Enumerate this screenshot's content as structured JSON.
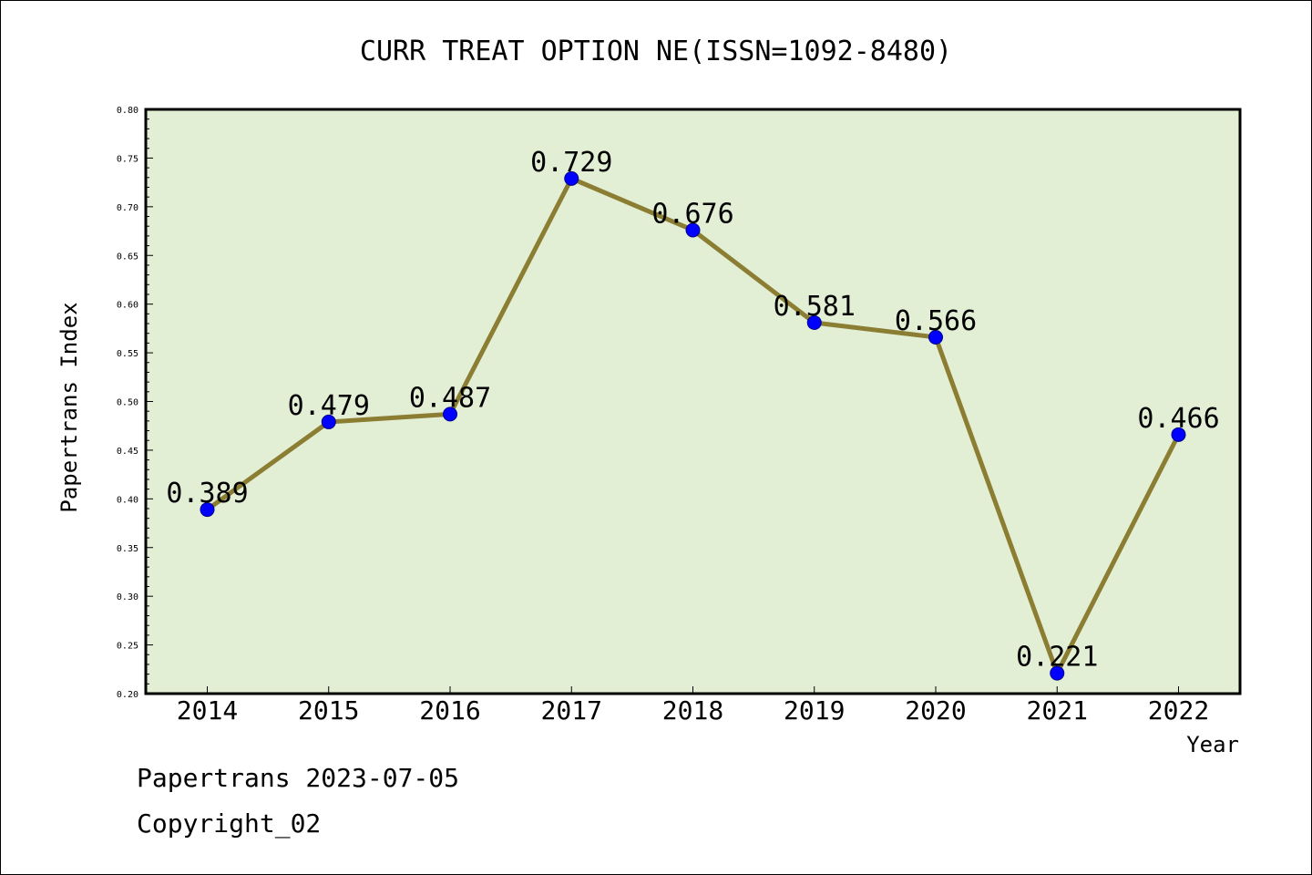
{
  "chart_data": {
    "type": "line",
    "title": "CURR TREAT OPTION NE(ISSN=1092-8480)",
    "xlabel": "Year",
    "ylabel": "Papertrans Index",
    "categories": [
      "2014",
      "2015",
      "2016",
      "2017",
      "2018",
      "2019",
      "2020",
      "2021",
      "2022"
    ],
    "values": [
      0.389,
      0.479,
      0.487,
      0.729,
      0.676,
      0.581,
      0.566,
      0.221,
      0.466
    ],
    "data_labels": [
      "0.389",
      "0.479",
      "0.487",
      "0.729",
      "0.676",
      "0.581",
      "0.566",
      "0.221",
      "0.466"
    ],
    "ylim": [
      0.2,
      0.8
    ],
    "yticks": [
      "0.20",
      "0.25",
      "0.30",
      "0.35",
      "0.40",
      "0.45",
      "0.50",
      "0.55",
      "0.60",
      "0.65",
      "0.70",
      "0.75",
      "0.80"
    ],
    "grid": false,
    "legend": "none",
    "colors": {
      "plot_background": "#e2efd5",
      "line": "#8b7d32",
      "marker": "#0000ff"
    }
  },
  "footer": {
    "line1": "Papertrans 2023-07-05",
    "line2": "Copyright_02"
  }
}
